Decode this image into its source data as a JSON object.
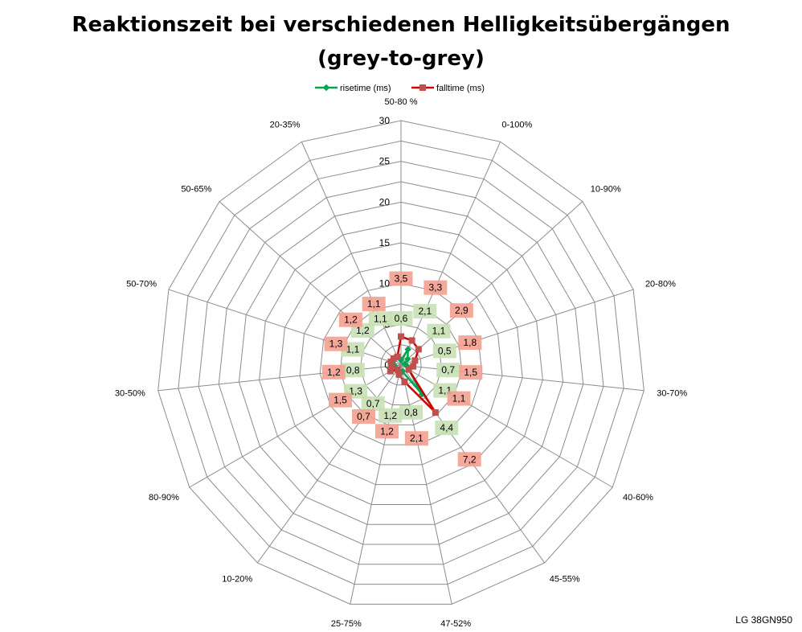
{
  "chart_data": {
    "type": "radar",
    "title_line1": "Reaktionszeit bei verschiedenen Helligkeitsübergängen",
    "title_line2": "(grey-to-grey)",
    "categories": [
      "50-80 %",
      "0-100%",
      "10-90%",
      "20-80%",
      "30-70%",
      "40-60%",
      "45-55%",
      "47-52%",
      "25-75%",
      "10-20%",
      "80-90%",
      "30-50%",
      "50-70%",
      "50-65%",
      "20-35%"
    ],
    "series": [
      {
        "name": "risetime (ms)",
        "color": "#00a550",
        "label_bg": "#c6e0b4",
        "values": [
          0.6,
          2.1,
          1.1,
          0.5,
          0.7,
          1.1,
          4.4,
          0.8,
          1.2,
          0.7,
          1.3,
          0.8,
          1.1,
          1.2,
          1.1
        ]
      },
      {
        "name": "falltime (ms)",
        "color": "#cc0000",
        "marker_color": "#c0504d",
        "label_bg": "#f4a090",
        "values": [
          3.5,
          3.3,
          2.9,
          1.8,
          1.5,
          1.1,
          7.2,
          2.1,
          1.2,
          0.7,
          1.5,
          1.2,
          1.3,
          1.2,
          1.1
        ]
      }
    ],
    "r_ticks": [
      0,
      5,
      10,
      15,
      20,
      25,
      30
    ],
    "r_max": 30,
    "legend_position": "top",
    "grid": true
  },
  "watermark": "LG 38GN950"
}
